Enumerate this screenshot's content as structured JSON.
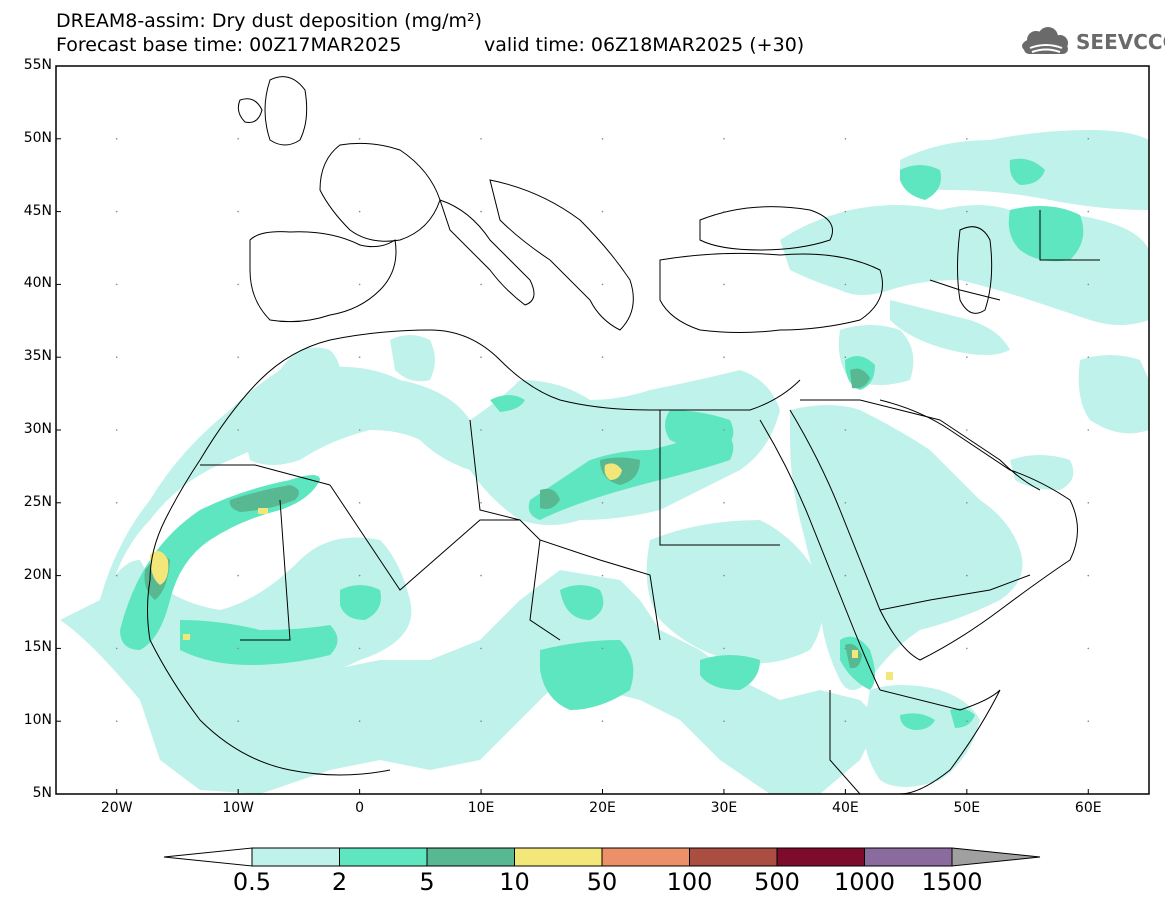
{
  "title": {
    "line1": "DREAM8-assim: Dry dust deposition (mg/m²)",
    "line2": "Forecast base time: 00Z17MAR2025",
    "valid": "valid time: 06Z18MAR2025 (+30)"
  },
  "logo": {
    "text": "SEEVCCC",
    "icon": "cloud-icon"
  },
  "map": {
    "lon_range": [
      -25,
      65
    ],
    "lat_range": [
      5,
      55
    ],
    "lat_labels": [
      "55N",
      "50N",
      "45N",
      "40N",
      "35N",
      "30N",
      "25N",
      "20N",
      "15N",
      "10N",
      "5N"
    ],
    "lon_labels": [
      "20W",
      "10W",
      "0",
      "10E",
      "20E",
      "30E",
      "40E",
      "50E",
      "60E"
    ],
    "lat_values": [
      55,
      50,
      45,
      40,
      35,
      30,
      25,
      20,
      15,
      10,
      5
    ],
    "lon_values": [
      -20,
      -10,
      0,
      10,
      20,
      30,
      40,
      50,
      60
    ]
  },
  "colorbar": {
    "levels": [
      "0.5",
      "2",
      "5",
      "10",
      "50",
      "100",
      "500",
      "1000",
      "1500"
    ],
    "colors": [
      "#bff2ea",
      "#5ee6c0",
      "#58b892",
      "#f3e77a",
      "#eb9068",
      "#a94e40",
      "#7d0c2c",
      "#8b6b9e",
      "#a0a0a0"
    ]
  }
}
